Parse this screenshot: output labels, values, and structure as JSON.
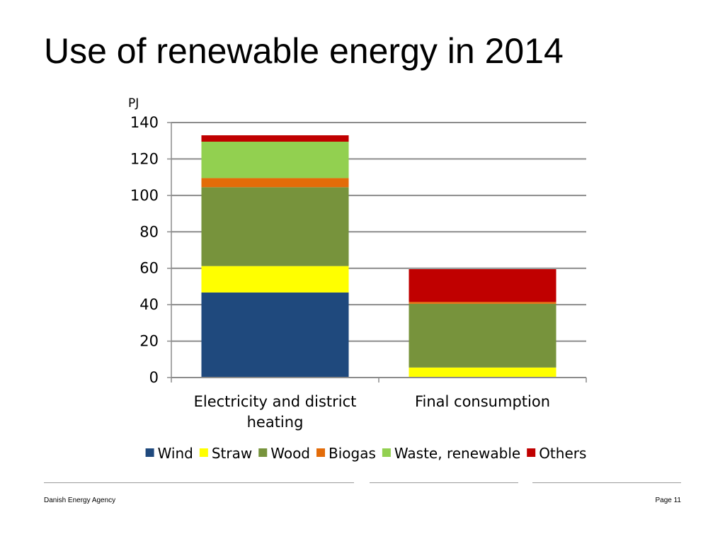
{
  "page": {
    "title": "Use of renewable energy in 2014",
    "footer_left": "Danish Energy Agency",
    "footer_right": "Page 11"
  },
  "chart_data": {
    "type": "bar",
    "stacked": true,
    "title": "Use of renewable energy in 2014",
    "ylabel": "PJ",
    "xlabel": "",
    "ylim": [
      0,
      140
    ],
    "yticks": [
      0,
      20,
      40,
      60,
      80,
      100,
      120,
      140
    ],
    "grid": true,
    "legend_position": "bottom",
    "categories": [
      [
        "Electricity and district",
        "heating"
      ],
      [
        "Final consumption"
      ]
    ],
    "series": [
      {
        "name": "Wind",
        "color": "#1F497D",
        "values": [
          46.7,
          0
        ]
      },
      {
        "name": "Straw",
        "color": "#FFFF00",
        "values": [
          14.5,
          5.5
        ]
      },
      {
        "name": "Wood",
        "color": "#77933C",
        "values": [
          43.3,
          35.0
        ]
      },
      {
        "name": "Biogas",
        "color": "#E36C09",
        "values": [
          5.0,
          1.0
        ]
      },
      {
        "name": "Waste, renewable",
        "color": "#92D050",
        "values": [
          20.0,
          0
        ]
      },
      {
        "name": "Others",
        "color": "#C00000",
        "values": [
          3.5,
          18.0
        ]
      }
    ]
  }
}
